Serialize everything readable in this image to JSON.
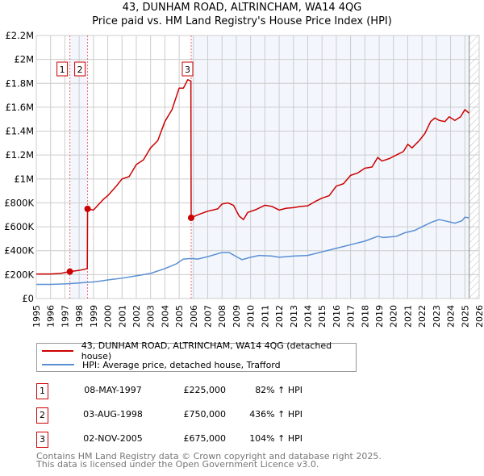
{
  "chart_data": {
    "type": "line",
    "title": "43, DUNHAM ROAD, ALTRINCHAM, WA14 4QG",
    "subtitle": "Price paid vs. HM Land Registry's House Price Index (HPI)",
    "xlim": [
      1995,
      2026
    ],
    "ylim": [
      0,
      2200000
    ],
    "x_ticks": [
      "1995",
      "1996",
      "1997",
      "1998",
      "1999",
      "2000",
      "2001",
      "2002",
      "2003",
      "2004",
      "2005",
      "2006",
      "2007",
      "2008",
      "2009",
      "2010",
      "2011",
      "2012",
      "2013",
      "2014",
      "2015",
      "2016",
      "2017",
      "2018",
      "2019",
      "2020",
      "2021",
      "2022",
      "2023",
      "2024",
      "2025",
      "2026"
    ],
    "y_ticks": [
      {
        "v": 0,
        "label": "£0"
      },
      {
        "v": 200000,
        "label": "£200K"
      },
      {
        "v": 400000,
        "label": "£400K"
      },
      {
        "v": 600000,
        "label": "£600K"
      },
      {
        "v": 800000,
        "label": "£800K"
      },
      {
        "v": 1000000,
        "label": "£1M"
      },
      {
        "v": 1200000,
        "label": "£1.2M"
      },
      {
        "v": 1400000,
        "label": "£1.4M"
      },
      {
        "v": 1600000,
        "label": "£1.6M"
      },
      {
        "v": 1800000,
        "label": "£1.8M"
      },
      {
        "v": 2000000,
        "label": "£2M"
      },
      {
        "v": 2200000,
        "label": "£2.2M"
      }
    ],
    "grid": true,
    "series": [
      {
        "name": "43, DUNHAM ROAD, ALTRINCHAM, WA14 4QG (detached house)",
        "color": "#cc0000",
        "points": [
          [
            1995,
            205000
          ],
          [
            1996,
            205000
          ],
          [
            1996.7,
            210000
          ],
          [
            1997.35,
            225000
          ],
          [
            1998,
            235000
          ],
          [
            1998.57,
            250000
          ],
          [
            1998.59,
            750000
          ],
          [
            1999,
            740000
          ],
          [
            1999.7,
            830000
          ],
          [
            2000,
            860000
          ],
          [
            2000.6,
            940000
          ],
          [
            2001,
            1000000
          ],
          [
            2001.5,
            1020000
          ],
          [
            2002,
            1120000
          ],
          [
            2002.5,
            1160000
          ],
          [
            2003,
            1260000
          ],
          [
            2003.5,
            1320000
          ],
          [
            2004,
            1480000
          ],
          [
            2004.5,
            1580000
          ],
          [
            2005,
            1760000
          ],
          [
            2005.3,
            1760000
          ],
          [
            2005.6,
            1830000
          ],
          [
            2005.82,
            1820000
          ],
          [
            2005.84,
            675000
          ],
          [
            2006.3,
            700000
          ],
          [
            2007,
            730000
          ],
          [
            2007.7,
            750000
          ],
          [
            2008,
            790000
          ],
          [
            2008.4,
            800000
          ],
          [
            2008.8,
            780000
          ],
          [
            2009.2,
            690000
          ],
          [
            2009.5,
            660000
          ],
          [
            2009.8,
            720000
          ],
          [
            2010.4,
            745000
          ],
          [
            2011,
            780000
          ],
          [
            2011.5,
            770000
          ],
          [
            2012,
            740000
          ],
          [
            2012.5,
            755000
          ],
          [
            2013,
            760000
          ],
          [
            2013.5,
            770000
          ],
          [
            2014,
            775000
          ],
          [
            2014.5,
            810000
          ],
          [
            2015,
            840000
          ],
          [
            2015.5,
            860000
          ],
          [
            2016,
            940000
          ],
          [
            2016.5,
            960000
          ],
          [
            2017,
            1030000
          ],
          [
            2017.5,
            1050000
          ],
          [
            2018,
            1090000
          ],
          [
            2018.5,
            1100000
          ],
          [
            2018.9,
            1180000
          ],
          [
            2019.2,
            1150000
          ],
          [
            2019.7,
            1170000
          ],
          [
            2020.2,
            1200000
          ],
          [
            2020.7,
            1230000
          ],
          [
            2021,
            1290000
          ],
          [
            2021.3,
            1260000
          ],
          [
            2021.8,
            1320000
          ],
          [
            2022.2,
            1380000
          ],
          [
            2022.6,
            1480000
          ],
          [
            2022.9,
            1510000
          ],
          [
            2023.2,
            1490000
          ],
          [
            2023.6,
            1480000
          ],
          [
            2023.9,
            1520000
          ],
          [
            2024.3,
            1490000
          ],
          [
            2024.7,
            1520000
          ],
          [
            2025.0,
            1580000
          ],
          [
            2025.3,
            1550000
          ]
        ]
      },
      {
        "name": "HPI: Average price, detached house, Trafford",
        "color": "#5b8fd4",
        "points": [
          [
            1995,
            118000
          ],
          [
            1996,
            118000
          ],
          [
            1997,
            122000
          ],
          [
            1998,
            130000
          ],
          [
            1998.6,
            136000
          ],
          [
            1999,
            138000
          ],
          [
            2000,
            155000
          ],
          [
            2001,
            170000
          ],
          [
            2002,
            190000
          ],
          [
            2003,
            210000
          ],
          [
            2004,
            250000
          ],
          [
            2004.8,
            290000
          ],
          [
            2005.3,
            330000
          ],
          [
            2005.84,
            335000
          ],
          [
            2006.3,
            330000
          ],
          [
            2007,
            350000
          ],
          [
            2008,
            385000
          ],
          [
            2008.5,
            385000
          ],
          [
            2009,
            350000
          ],
          [
            2009.4,
            325000
          ],
          [
            2010,
            345000
          ],
          [
            2010.6,
            360000
          ],
          [
            2011.5,
            355000
          ],
          [
            2012,
            345000
          ],
          [
            2013,
            355000
          ],
          [
            2014,
            360000
          ],
          [
            2015,
            390000
          ],
          [
            2016,
            420000
          ],
          [
            2017,
            450000
          ],
          [
            2018,
            480000
          ],
          [
            2018.9,
            520000
          ],
          [
            2019.3,
            510000
          ],
          [
            2020.2,
            520000
          ],
          [
            2020.8,
            550000
          ],
          [
            2021.5,
            570000
          ],
          [
            2022,
            600000
          ],
          [
            2022.7,
            640000
          ],
          [
            2023.2,
            660000
          ],
          [
            2023.6,
            650000
          ],
          [
            2024.3,
            630000
          ],
          [
            2024.8,
            650000
          ],
          [
            2025.0,
            680000
          ],
          [
            2025.3,
            675000
          ]
        ]
      }
    ],
    "shaded_ranges": [
      [
        1997.35,
        1998.59
      ],
      [
        2005.84,
        2025.3
      ]
    ],
    "hatched_from": 2025.3,
    "sales": [
      {
        "label": "1",
        "x": 1997.35,
        "y": 225000
      },
      {
        "label": "2",
        "x": 1998.59,
        "y": 750000
      },
      {
        "label": "3",
        "x": 2005.84,
        "y": 675000
      }
    ],
    "legend_placement": "below"
  },
  "legend": {
    "red_label": "43, DUNHAM ROAD, ALTRINCHAM, WA14 4QG (detached house)",
    "blue_label": "HPI: Average price, detached house, Trafford"
  },
  "table": [
    {
      "num": "1",
      "date": "08-MAY-1997",
      "price": "£225,000",
      "pct": "82% ↑ HPI"
    },
    {
      "num": "2",
      "date": "03-AUG-1998",
      "price": "£750,000",
      "pct": "436% ↑ HPI"
    },
    {
      "num": "3",
      "date": "02-NOV-2005",
      "price": "£675,000",
      "pct": "104% ↑ HPI"
    }
  ],
  "footer": {
    "line1": "Contains HM Land Registry data © Crown copyright and database right 2025.",
    "line2": "This data is licensed under the Open Government Licence v3.0."
  }
}
